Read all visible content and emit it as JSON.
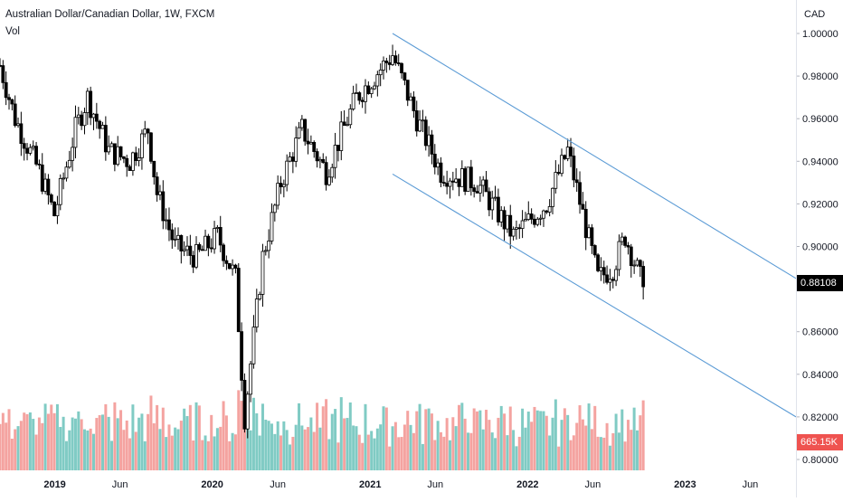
{
  "header": {
    "title": "Australian Dollar/Canadian Dollar, 1W, FXCM",
    "volume_label": "Vol"
  },
  "currency_label": "CAD",
  "tags": {
    "last_price": "0.88108",
    "last_volume": "665.15K"
  },
  "colors": {
    "candle": "#000000",
    "channel": "#5b9bd5",
    "volume_up": "#80cbc4",
    "volume_down": "#f4a3a0",
    "price_tag_bg": "#000000",
    "volume_tag_bg": "#ef5350"
  },
  "chart_data": {
    "type": "candlestick",
    "title": "Australian Dollar/Canadian Dollar, 1W, FXCM",
    "ylabel": "CAD",
    "ylim": [
      0.8,
      1.0
    ],
    "ytick_labels": [
      "1.00000",
      "0.98000",
      "0.96000",
      "0.94000",
      "0.92000",
      "0.90000",
      "0.86000",
      "0.84000",
      "0.82000",
      "0.80000"
    ],
    "xtick_labels": [
      "2019",
      "Jun",
      "2020",
      "Jun",
      "2021",
      "Jun",
      "2022",
      "Jun",
      "2023",
      "Jun"
    ],
    "xtick_dates": [
      "2019-01-01",
      "2019-06-01",
      "2020-01-01",
      "2020-06-01",
      "2021-01-01",
      "2021-06-01",
      "2022-01-01",
      "2022-06-01",
      "2023-01-01",
      "2023-06-01"
    ],
    "x_range": [
      "2018-08-27",
      "2023-09-15"
    ],
    "grid": false,
    "approximate_weekly_close_path": [
      {
        "date": "2018-08-27",
        "close": 0.985
      },
      {
        "date": "2018-10-01",
        "close": 0.96
      },
      {
        "date": "2018-11-26",
        "close": 0.935
      },
      {
        "date": "2018-12-31",
        "close": 0.915
      },
      {
        "date": "2019-02-18",
        "close": 0.955
      },
      {
        "date": "2019-03-18",
        "close": 0.97
      },
      {
        "date": "2019-05-06",
        "close": 0.945
      },
      {
        "date": "2019-06-24",
        "close": 0.94
      },
      {
        "date": "2019-08-05",
        "close": 0.955
      },
      {
        "date": "2019-08-26",
        "close": 0.925
      },
      {
        "date": "2019-10-07",
        "close": 0.9
      },
      {
        "date": "2019-11-25",
        "close": 0.895
      },
      {
        "date": "2020-01-13",
        "close": 0.905
      },
      {
        "date": "2020-02-24",
        "close": 0.885
      },
      {
        "date": "2020-03-16",
        "close": 0.82
      },
      {
        "date": "2020-04-27",
        "close": 0.895
      },
      {
        "date": "2020-06-08",
        "close": 0.93
      },
      {
        "date": "2020-07-27",
        "close": 0.955
      },
      {
        "date": "2020-09-21",
        "close": 0.935
      },
      {
        "date": "2020-11-30",
        "close": 0.97
      },
      {
        "date": "2021-02-22",
        "close": 0.99
      },
      {
        "date": "2021-04-19",
        "close": 0.96
      },
      {
        "date": "2021-06-14",
        "close": 0.935
      },
      {
        "date": "2021-09-06",
        "close": 0.93
      },
      {
        "date": "2021-11-29",
        "close": 0.905
      },
      {
        "date": "2022-02-14",
        "close": 0.92
      },
      {
        "date": "2022-04-04",
        "close": 0.945
      },
      {
        "date": "2022-06-13",
        "close": 0.885
      },
      {
        "date": "2022-07-18",
        "close": 0.89
      },
      {
        "date": "2022-08-15",
        "close": 0.905
      },
      {
        "date": "2022-09-26",
        "close": 0.881
      }
    ],
    "channel_lines": [
      {
        "name": "",
        "points": [
          {
            "date": "2021-02-22",
            "price": 1.0
          },
          {
            "date": "2023-09-15",
            "price": 0.885
          }
        ]
      },
      {
        "name": "",
        "points": [
          {
            "date": "2021-02-22",
            "price": 0.934
          },
          {
            "date": "2023-09-15",
            "price": 0.82
          }
        ]
      }
    ],
    "volume_panel": {
      "label": "Vol",
      "last_value": "665.15K"
    }
  }
}
